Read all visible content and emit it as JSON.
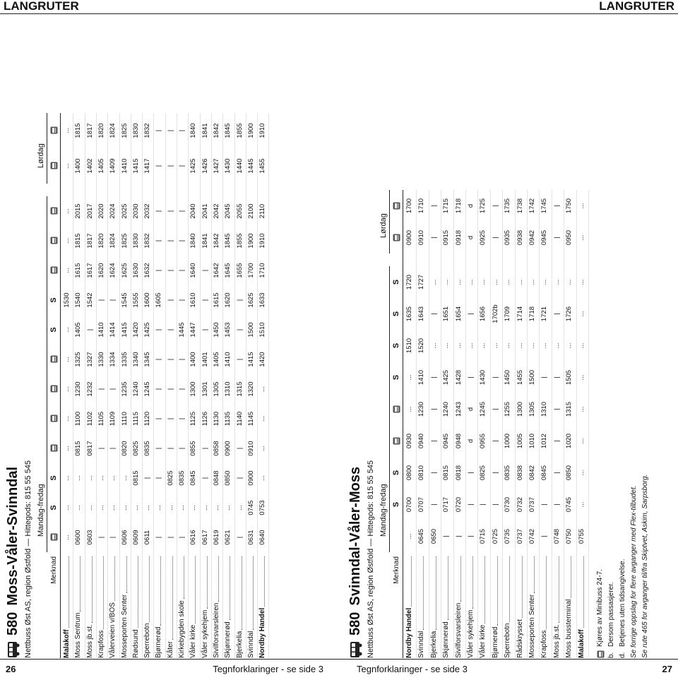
{
  "header": {
    "left": "LANGRUTER",
    "right": "LANGRUTER"
  },
  "pages": [
    {
      "page_number": 26,
      "footer": "Tegnforklaringer - se side 3",
      "timetable": {
        "route": "580",
        "title": "Moss-Våler-Svinndal",
        "operator": "Nettbuss Øst AS, region Østfold — Hittegods: 815 55 545",
        "merknad": "Merknad",
        "groups": [
          {
            "label": "Mandag-fredag",
            "notes": [
              null,
              "S",
              "S",
              null,
              null,
              null,
              null,
              "S",
              "S",
              null,
              null,
              null
            ],
            "minibus": [
              true,
              false,
              false,
              true,
              true,
              true,
              true,
              false,
              false,
              true,
              true,
              true
            ]
          },
          {
            "label": "Lørdag",
            "notes": [
              null,
              null
            ],
            "minibus": [
              true,
              true
            ]
          }
        ],
        "rows": [
          {
            "stop": "Malakoff",
            "bold": true,
            "times": [
              "...",
              "...",
              "...",
              "...",
              "...",
              "...",
              "...",
              "...",
              "1530",
              "...",
              "...",
              "...",
              "...",
              "..."
            ]
          },
          {
            "stop": "Moss Sentrum",
            "times": [
              "0600",
              "...",
              "...",
              "0815",
              "1100",
              "1230",
              "1325",
              "1405",
              "1540",
              "1615",
              "1815",
              "2015",
              "1400",
              "1815"
            ]
          },
          {
            "stop": "Moss jb.st.",
            "times": [
              "0603",
              "...",
              "...",
              "0817",
              "1102",
              "1232",
              "1327",
              "|",
              "1542",
              "1617",
              "1817",
              "2017",
              "1402",
              "1817"
            ]
          },
          {
            "stop": "Krapfoss",
            "times": [
              "|",
              "...",
              "...",
              "|",
              "1105",
              "|",
              "1330",
              "1410",
              "|",
              "1620",
              "1820",
              "2020",
              "1405",
              "1820"
            ]
          },
          {
            "stop": "Vålerveien v/BOS",
            "times": [
              "|",
              "...",
              "...",
              "|",
              "1109",
              "|",
              "1334",
              "1414",
              "|",
              "1624",
              "1824",
              "2024",
              "1409",
              "1824"
            ]
          },
          {
            "stop": "Mosseporten Senter",
            "times": [
              "0606",
              "...",
              "...",
              "0820",
              "1110",
              "1235",
              "1335",
              "1415",
              "1545",
              "1625",
              "1825",
              "2025",
              "1410",
              "1825"
            ]
          },
          {
            "stop": "Rødsund",
            "times": [
              "0609",
              "...",
              "0815",
              "0825",
              "1115",
              "1240",
              "1340",
              "1420",
              "1555",
              "1630",
              "1830",
              "2030",
              "1415",
              "1830"
            ]
          },
          {
            "stop": "Sperrebotn",
            "times": [
              "0611",
              "...",
              "|",
              "0835",
              "1120",
              "1245",
              "1345",
              "1425",
              "1600",
              "1632",
              "1832",
              "2032",
              "1417",
              "1832"
            ]
          },
          {
            "stop": "Bjørnerød",
            "times": [
              "|",
              "...",
              "|",
              "|",
              "|",
              "|",
              "|",
              "|",
              "1605",
              "|",
              "|",
              "|",
              "|",
              "|"
            ]
          },
          {
            "stop": "Kåter",
            "times": [
              "|",
              "...",
              "0825",
              "|",
              "|",
              "|",
              "|",
              "|",
              "|",
              "|",
              "|",
              "|",
              "|",
              "|"
            ]
          },
          {
            "stop": "Kirkebygden skole",
            "times": [
              "|",
              "...",
              "0835",
              "|",
              "|",
              "|",
              "|",
              "1445",
              "|",
              "|",
              "|",
              "|",
              "|",
              "|"
            ]
          },
          {
            "stop": "Våler kirke",
            "times": [
              "0616",
              "...",
              "0845",
              "0855",
              "1125",
              "1300",
              "1400",
              "1447",
              "1610",
              "1640",
              "1840",
              "2040",
              "1425",
              "1840"
            ]
          },
          {
            "stop": "Våler sykehjem",
            "times": [
              "0617",
              "...",
              "|",
              "|",
              "1126",
              "1301",
              "1401",
              "|",
              "|",
              "|",
              "1841",
              "2041",
              "1426",
              "1841"
            ]
          },
          {
            "stop": "Sivilforsvarsleiren",
            "times": [
              "0619",
              "...",
              "0848",
              "0858",
              "1130",
              "1305",
              "1405",
              "1450",
              "1615",
              "1642",
              "1842",
              "2042",
              "1427",
              "1842"
            ]
          },
          {
            "stop": "Skjønnerød",
            "times": [
              "0621",
              "...",
              "0850",
              "0900",
              "1135",
              "1310",
              "1410",
              "1453",
              "1620",
              "1645",
              "1845",
              "2045",
              "1430",
              "1845"
            ]
          },
          {
            "stop": "Bjerkelia",
            "times": [
              "|",
              "...",
              "|",
              "|",
              "1140",
              "1315",
              "|",
              "|",
              "|",
              "1655",
              "1855",
              "2055",
              "1440",
              "1855"
            ]
          },
          {
            "stop": "Svinndal",
            "times": [
              "0631",
              "0745",
              "0900",
              "0910",
              "1145",
              "1320",
              "1415",
              "1500",
              "1625",
              "1700",
              "1900",
              "2100",
              "1445",
              "1900"
            ]
          },
          {
            "stop": "Nordby Handel",
            "bold": true,
            "times": [
              "0640",
              "0753",
              "...",
              "...",
              "...",
              "...",
              "1420",
              "1510",
              "1633",
              "1710",
              "1910",
              "2110",
              "1455",
              "1910"
            ]
          }
        ]
      }
    },
    {
      "page_number": 27,
      "footer": "Tegnforklaringer - se side 3",
      "timetable": {
        "route": "580",
        "title": "Svinndal-Våler-Moss",
        "operator": "Nettbuss Øst AS, region Østfold — Hittegods: 815 55 545",
        "merknad": "Merknad",
        "groups": [
          {
            "label": "Mandag-fredag",
            "notes": [
              null,
              "S",
              "S",
              null,
              null,
              "S",
              "S",
              "S",
              "S"
            ],
            "minibus": [
              false,
              false,
              false,
              true,
              true,
              false,
              false,
              false,
              false
            ]
          },
          {
            "label": "Lørdag",
            "notes": [
              null,
              null
            ],
            "minibus": [
              true,
              true
            ]
          }
        ],
        "rows": [
          {
            "stop": "Nordby Handel",
            "bold": true,
            "times": [
              "...",
              "0700",
              "0800",
              "0930",
              "...",
              "...",
              "1510",
              "1635",
              "1720",
              "0900",
              "1700"
            ]
          },
          {
            "stop": "Svinndal",
            "times": [
              "0645",
              "0707",
              "0810",
              "0940",
              "1230",
              "1410",
              "1520",
              "1643",
              "1727",
              "0910",
              "1710"
            ]
          },
          {
            "stop": "Bjerkelia",
            "times": [
              "0650",
              "|",
              "|",
              "|",
              "|",
              "|",
              "...",
              "|",
              "...",
              "|",
              "|"
            ]
          },
          {
            "stop": "Skjønnerød",
            "times": [
              "|",
              "0717",
              "0815",
              "0945",
              "1240",
              "1425",
              "...",
              "1651",
              "...",
              "0915",
              "1715"
            ]
          },
          {
            "stop": "Sivilforsvarsleiren",
            "times": [
              "|",
              "0720",
              "0818",
              "0948",
              "1243",
              "1428",
              "...",
              "1654",
              "...",
              "0918",
              "1718"
            ]
          },
          {
            "stop": "Våler sykehjem",
            "times": [
              "|",
              "|",
              "|",
              "d",
              "d",
              "|",
              "...",
              "|",
              "...",
              "d",
              "d"
            ]
          },
          {
            "stop": "Våler kirke",
            "times": [
              "0715",
              "|",
              "0825",
              "0955",
              "1245",
              "1430",
              "...",
              "1656",
              "...",
              "0925",
              "1725"
            ]
          },
          {
            "stop": "Bjørnerød",
            "times": [
              "0725",
              "|",
              "|",
              "|",
              "|",
              "|",
              "...",
              "1702b",
              "...",
              "|",
              "|"
            ]
          },
          {
            "stop": "Sperrebotn",
            "times": [
              "0735",
              "0730",
              "0835",
              "1000",
              "1255",
              "1450",
              "...",
              "1709",
              "...",
              "0935",
              "1735"
            ]
          },
          {
            "stop": "Rådskrysset",
            "times": [
              "0737",
              "0732",
              "0838",
              "1005",
              "1300",
              "1455",
              "...",
              "1714",
              "...",
              "0938",
              "1738"
            ]
          },
          {
            "stop": "Mosseporten Senter",
            "times": [
              "0742",
              "0737",
              "0842",
              "1010",
              "1305",
              "1500",
              "...",
              "1718",
              "...",
              "0942",
              "1742"
            ]
          },
          {
            "stop": "Krapfoss",
            "times": [
              "|",
              "|",
              "0845",
              "1012",
              "1310",
              "|",
              "...",
              "1721",
              "...",
              "0945",
              "1745"
            ]
          },
          {
            "stop": "Moss jb.st.",
            "times": [
              "0748",
              "|",
              "|",
              "|",
              "|",
              "|",
              "...",
              "|",
              "...",
              "|",
              "|"
            ]
          },
          {
            "stop": "Moss bussterminal",
            "times": [
              "0750",
              "0745",
              "0850",
              "1020",
              "1315",
              "1505",
              "...",
              "1726",
              "...",
              "0950",
              "1750"
            ]
          },
          {
            "stop": "Malakoff",
            "bold": true,
            "times": [
              "0755",
              "...",
              "...",
              "...",
              "...",
              "...",
              "...",
              "...",
              "...",
              "...",
              "..."
            ]
          }
        ],
        "notes": [
          {
            "minibus": true,
            "text": "Kjøres av Minibuss 24-7."
          },
          {
            "key": "b.",
            "text": "Dersom passasjerer."
          },
          {
            "key": "d.",
            "text": "Betjenes uten tidsangivelse."
          },
          {
            "italic": true,
            "text": "Se forrige oppslag for flere avganger med Flex-tilbudet."
          },
          {
            "italic": true,
            "text": "Se rute 465 for avganger til/fra Skiptvet, Askim, Sarpsborg."
          }
        ]
      }
    }
  ]
}
